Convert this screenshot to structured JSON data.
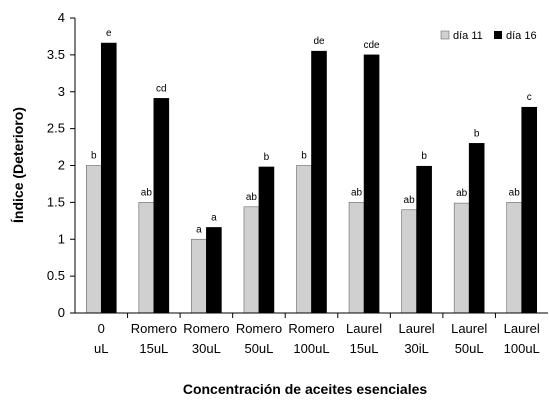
{
  "chart_data": {
    "type": "bar",
    "xlabel": "Concentración de aceites esenciales",
    "ylabel": "Índice (Deterioro)",
    "ylim": [
      0,
      4
    ],
    "yticks": [
      "0",
      "0.5",
      "1",
      "1.5",
      "2",
      "2.5",
      "3",
      "3.5",
      "4"
    ],
    "grid": false,
    "legend_position": "top-right",
    "categories": [
      [
        "0",
        "uL"
      ],
      [
        "Romero",
        "15uL"
      ],
      [
        "Romero",
        "30uL"
      ],
      [
        "Romero",
        "50uL"
      ],
      [
        "Romero",
        "100uL"
      ],
      [
        "Laurel",
        "15uL"
      ],
      [
        "Laurel",
        "30iL"
      ],
      [
        "Laurel",
        "50uL"
      ],
      [
        "Laurel",
        "100uL"
      ]
    ],
    "series": [
      {
        "name": "día 11",
        "color": "#d0d0d0",
        "values": [
          2.0,
          1.5,
          1.0,
          1.44,
          2.0,
          1.5,
          1.4,
          1.49,
          1.5
        ],
        "labels": [
          "b",
          "ab",
          "a",
          "ab",
          "b",
          "ab",
          "ab",
          "ab",
          "ab"
        ]
      },
      {
        "name": "día 16",
        "color": "#000000",
        "values": [
          3.66,
          2.91,
          1.16,
          1.98,
          3.55,
          3.5,
          1.99,
          2.3,
          2.79
        ],
        "labels": [
          "e",
          "cd",
          "a",
          "b",
          "de",
          "cde",
          "b",
          "b",
          "c"
        ]
      }
    ]
  }
}
